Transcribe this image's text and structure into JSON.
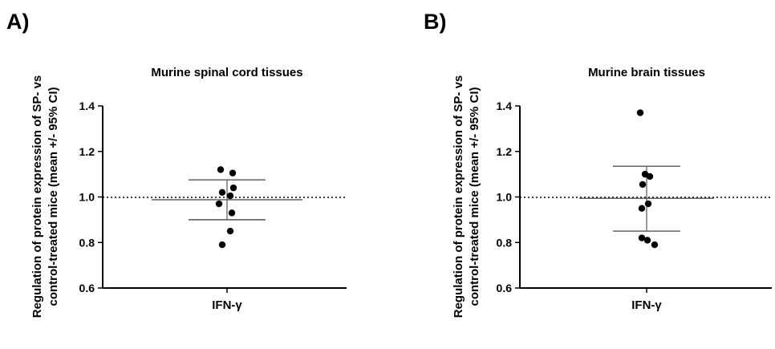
{
  "chart_data": [
    {
      "type": "scatter",
      "panel": "A)",
      "title": "Murine spinal cord tissues",
      "ylabel_lines": [
        "Regulation of protein expression of SP- vs",
        "control-treated mice (mean +/- 95% CI)"
      ],
      "categories": [
        "IFN-γ"
      ],
      "ylim": [
        0.6,
        1.4
      ],
      "yticks": [
        "0.6",
        "0.8",
        "1.0",
        "1.2",
        "1.4"
      ],
      "reference_line": 1.0,
      "points": [
        1.12,
        1.105,
        1.04,
        1.02,
        1.005,
        0.97,
        0.93,
        0.85,
        0.79
      ],
      "mean": 0.988,
      "ci": [
        0.9,
        1.075
      ],
      "grid": false
    },
    {
      "type": "scatter",
      "panel": "B)",
      "title": "Murine brain tissues",
      "ylabel_lines": [
        "Regulation of protein expression of SP- vs",
        "control-treated mice (mean +/- 95% CI)"
      ],
      "categories": [
        "IFN-γ"
      ],
      "ylim": [
        0.6,
        1.4
      ],
      "yticks": [
        "0.6",
        "0.8",
        "1.0",
        "1.2",
        "1.4"
      ],
      "reference_line": 1.0,
      "points": [
        1.37,
        1.1,
        1.09,
        1.055,
        0.97,
        0.95,
        0.82,
        0.81,
        0.79
      ],
      "mean": 0.994,
      "ci": [
        0.85,
        1.135
      ],
      "grid": false
    }
  ]
}
